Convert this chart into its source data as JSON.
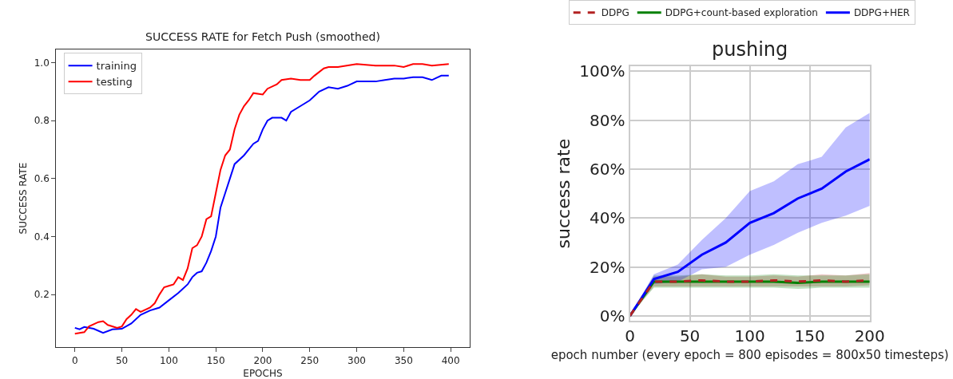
{
  "chart_data": [
    {
      "type": "line",
      "title": "SUCCESS RATE for Fetch Push (smoothed)",
      "xlabel": "EPOCHS",
      "ylabel": "SUCCESS RATE",
      "legend": "top left",
      "grid": false,
      "xlim": [
        -20,
        420
      ],
      "xticks": [
        0,
        50,
        100,
        150,
        200,
        250,
        300,
        350,
        400
      ],
      "ylim": [
        0.018,
        1.046
      ],
      "yticks": [
        {
          "value": 0.2,
          "label": "0.2"
        },
        {
          "value": 0.4,
          "label": "0.4"
        },
        {
          "value": 0.6,
          "label": "0.6"
        },
        {
          "value": 0.8,
          "label": "0.8"
        },
        {
          "value": 1.0,
          "label": "1.0"
        }
      ],
      "series": [
        {
          "name": "training",
          "color": "#0000ff",
          "x": [
            0,
            5,
            10,
            20,
            30,
            40,
            50,
            60,
            70,
            80,
            90,
            100,
            110,
            120,
            125,
            130,
            135,
            140,
            145,
            150,
            155,
            160,
            165,
            170,
            180,
            190,
            195,
            200,
            205,
            210,
            220,
            225,
            230,
            240,
            250,
            260,
            270,
            280,
            290,
            300,
            310,
            320,
            330,
            340,
            350,
            360,
            370,
            380,
            390,
            398
          ],
          "values": [
            0.085,
            0.08,
            0.088,
            0.082,
            0.068,
            0.08,
            0.082,
            0.1,
            0.13,
            0.145,
            0.155,
            0.18,
            0.205,
            0.235,
            0.26,
            0.275,
            0.28,
            0.31,
            0.35,
            0.4,
            0.5,
            0.55,
            0.6,
            0.65,
            0.68,
            0.72,
            0.73,
            0.77,
            0.8,
            0.81,
            0.81,
            0.8,
            0.83,
            0.85,
            0.87,
            0.9,
            0.915,
            0.91,
            0.92,
            0.935,
            0.935,
            0.935,
            0.94,
            0.945,
            0.945,
            0.95,
            0.95,
            0.94,
            0.955,
            0.955
          ]
        },
        {
          "name": "testing",
          "color": "#ff0000",
          "x": [
            0,
            10,
            15,
            25,
            30,
            35,
            45,
            50,
            55,
            60,
            65,
            70,
            80,
            85,
            90,
            95,
            100,
            105,
            110,
            115,
            120,
            125,
            130,
            135,
            140,
            145,
            150,
            155,
            160,
            165,
            170,
            175,
            180,
            185,
            190,
            200,
            205,
            215,
            220,
            230,
            240,
            250,
            255,
            265,
            270,
            280,
            300,
            320,
            340,
            350,
            360,
            370,
            380,
            398
          ],
          "values": [
            0.065,
            0.07,
            0.09,
            0.105,
            0.108,
            0.095,
            0.085,
            0.09,
            0.115,
            0.13,
            0.15,
            0.14,
            0.155,
            0.17,
            0.2,
            0.225,
            0.23,
            0.235,
            0.26,
            0.25,
            0.29,
            0.36,
            0.37,
            0.4,
            0.46,
            0.47,
            0.55,
            0.63,
            0.68,
            0.7,
            0.77,
            0.82,
            0.85,
            0.87,
            0.895,
            0.89,
            0.91,
            0.925,
            0.94,
            0.945,
            0.94,
            0.94,
            0.955,
            0.98,
            0.985,
            0.985,
            0.995,
            0.99,
            0.99,
            0.985,
            0.995,
            0.995,
            0.99,
            0.995
          ]
        }
      ]
    },
    {
      "type": "line",
      "title": "pushing",
      "xlabel": "epoch number (every epoch = 800 episodes = 800x50 timesteps)",
      "ylabel": "success rate",
      "legend": "top",
      "grid": true,
      "x": [
        0,
        20,
        40,
        60,
        80,
        100,
        120,
        140,
        160,
        180,
        200
      ],
      "xlim": [
        0,
        200
      ],
      "xticks": [
        0,
        50,
        100,
        150,
        200
      ],
      "ylim": [
        -2,
        102
      ],
      "yticks": [
        {
          "value": 0,
          "label": "0%"
        },
        {
          "value": 20,
          "label": "20%"
        },
        {
          "value": 40,
          "label": "40%"
        },
        {
          "value": 60,
          "label": "60%"
        },
        {
          "value": 80,
          "label": "80%"
        },
        {
          "value": 100,
          "label": "100%"
        }
      ],
      "series": [
        {
          "name": "DDPG",
          "color": "#b22222",
          "line_style": "dashed",
          "values": [
            0,
            14,
            14,
            14.5,
            14,
            14,
            14.5,
            14,
            14.5,
            14,
            14.5
          ],
          "lower": [
            0,
            12,
            12,
            12,
            12,
            12,
            12,
            12,
            12,
            12,
            12.5
          ],
          "upper": [
            0,
            16,
            16,
            17,
            16,
            16,
            16.5,
            16,
            17,
            16.5,
            17.5
          ]
        },
        {
          "name": "DDPG+count-based exploration",
          "color": "#008000",
          "line_style": "solid",
          "values": [
            0,
            14,
            14,
            14,
            14,
            14,
            14,
            13.5,
            14,
            14,
            14
          ],
          "lower": [
            0,
            11.5,
            11.5,
            11.5,
            11.5,
            11.5,
            11.5,
            11,
            11.5,
            11.5,
            11.5
          ],
          "upper": [
            0,
            16.5,
            16.5,
            17,
            16.5,
            16.5,
            17,
            16.5,
            16.5,
            16.5,
            17
          ]
        },
        {
          "name": "DDPG+HER",
          "color": "#0000ff",
          "line_style": "solid",
          "values": [
            0,
            15,
            18,
            25,
            30,
            38,
            42,
            48,
            52,
            59,
            64
          ],
          "lower": [
            0,
            13,
            14,
            19,
            20,
            25,
            29,
            34,
            38,
            41,
            45
          ],
          "upper": [
            0,
            17,
            21,
            31,
            40,
            51,
            55,
            62,
            65,
            77,
            83
          ]
        }
      ]
    }
  ]
}
